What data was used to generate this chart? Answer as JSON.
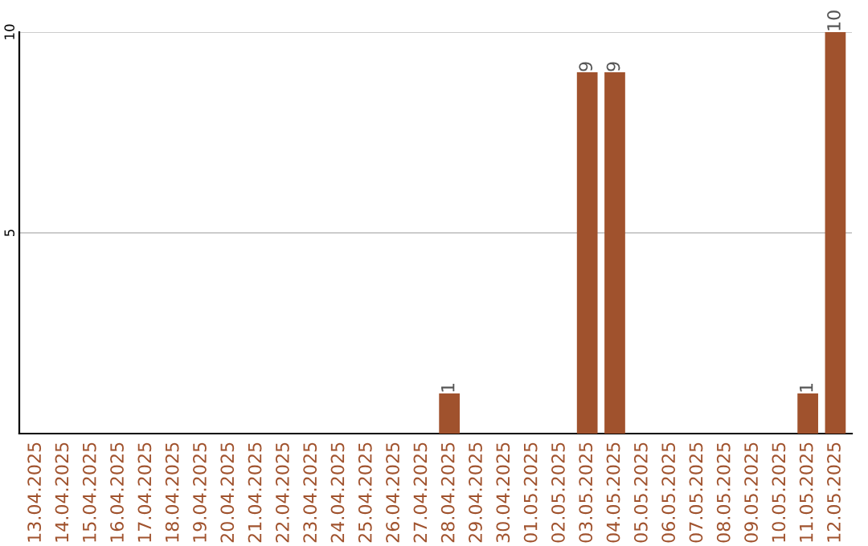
{
  "chart_data": {
    "type": "bar",
    "categories": [
      "13.04.2025",
      "14.04.2025",
      "15.04.2025",
      "16.04.2025",
      "17.04.2025",
      "18.04.2025",
      "19.04.2025",
      "20.04.2025",
      "21.04.2025",
      "22.04.2025",
      "23.04.2025",
      "24.04.2025",
      "25.04.2025",
      "26.04.2025",
      "27.04.2025",
      "28.04.2025",
      "29.04.2025",
      "30.04.2025",
      "01.05.2025",
      "02.05.2025",
      "03.05.2025",
      "04.05.2025",
      "05.05.2025",
      "06.05.2025",
      "07.05.2025",
      "08.05.2025",
      "09.05.2025",
      "10.05.2025",
      "11.05.2025",
      "12.05.2025"
    ],
    "values": [
      0,
      0,
      0,
      0,
      0,
      0,
      0,
      0,
      0,
      0,
      0,
      0,
      0,
      0,
      0,
      1,
      0,
      0,
      0,
      0,
      9,
      9,
      0,
      0,
      0,
      0,
      0,
      0,
      1,
      10
    ],
    "value_labels": [
      null,
      null,
      null,
      null,
      null,
      null,
      null,
      null,
      null,
      null,
      null,
      null,
      null,
      null,
      null,
      "1",
      null,
      null,
      null,
      null,
      "9",
      "9",
      null,
      null,
      null,
      null,
      null,
      null,
      "1",
      "10"
    ],
    "color": "#a0522d",
    "ylim": [
      0,
      10
    ],
    "yticks": [
      5,
      10
    ],
    "grid": "y"
  }
}
